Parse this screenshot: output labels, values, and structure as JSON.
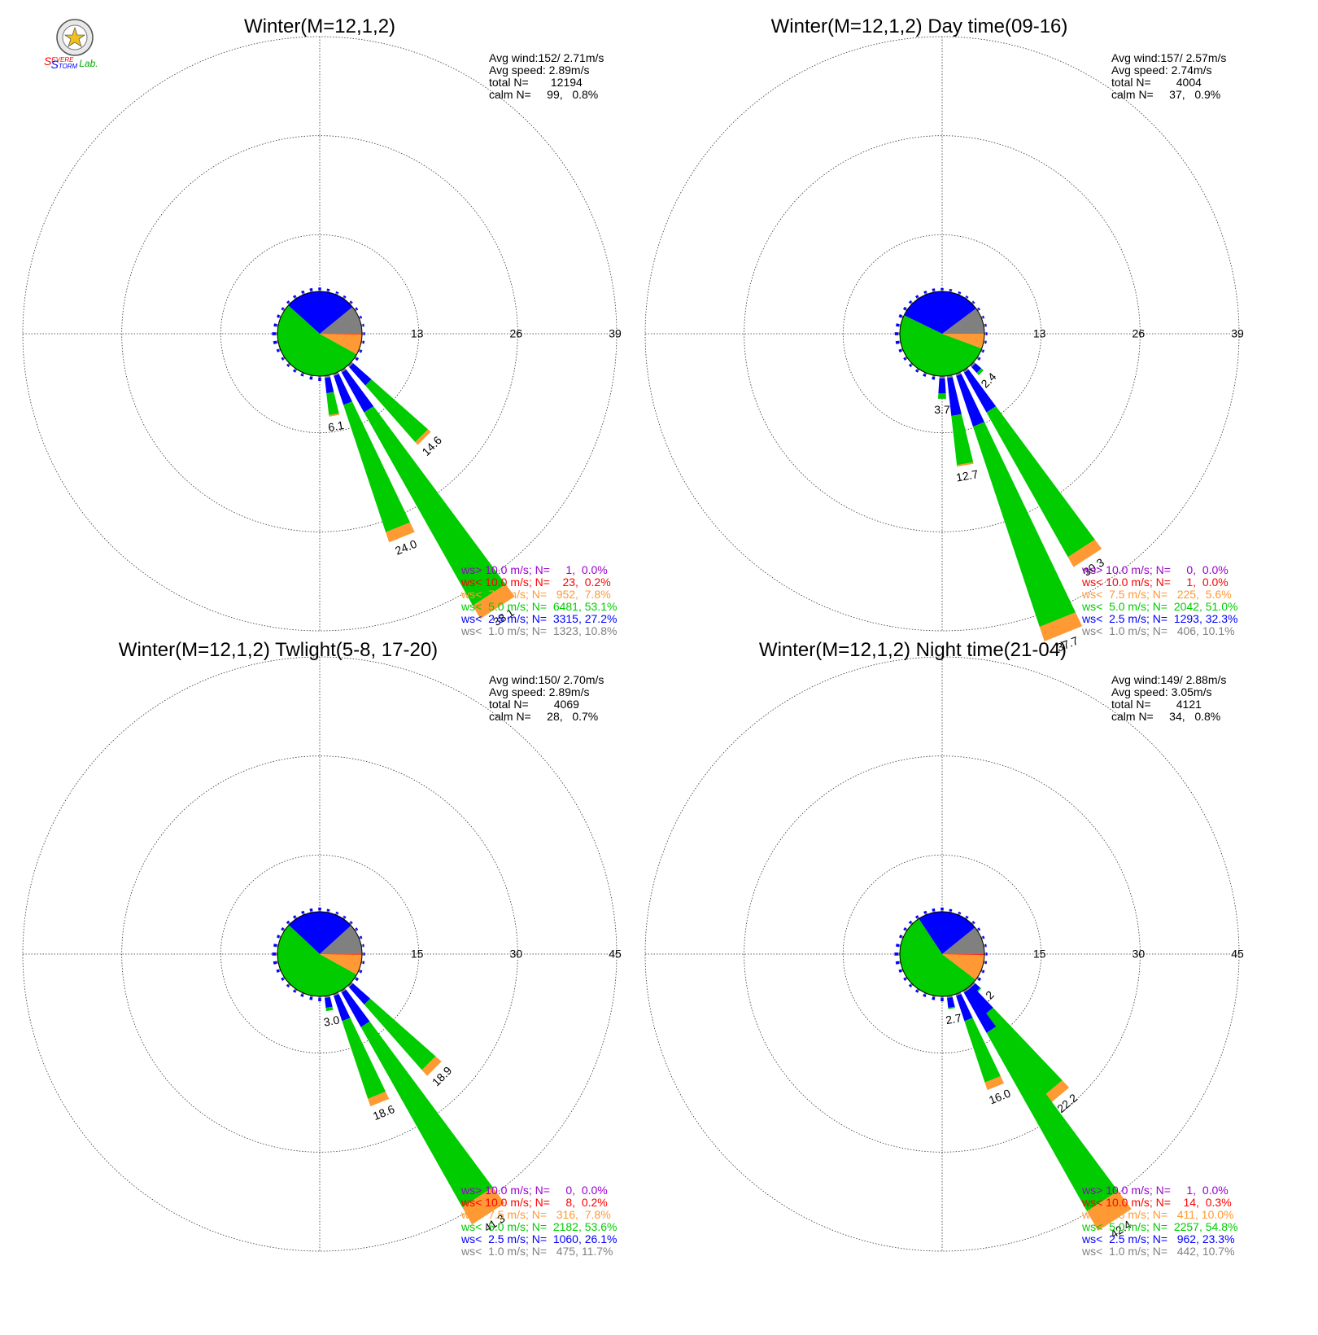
{
  "colors": {
    "ws_gt_10": "#9900cc",
    "ws_lt_10": "#ff0000",
    "ws_lt_7_5": "#ff9933",
    "ws_lt_5": "#00cc00",
    "ws_lt_2_5": "#0000ff",
    "ws_lt_1": "#808080",
    "grid": "#999999"
  },
  "logo": {
    "icon": "severe-storm-lab-logo",
    "text_parts": [
      "S",
      "EVERE",
      "S",
      "TORM",
      "Lab."
    ]
  },
  "chart_data": [
    {
      "type": "windrose",
      "title": "Winter(M=12,1,2)",
      "ring_labels": [
        "13",
        "26",
        "39"
      ],
      "rmax": 39,
      "stats": [
        "Avg wind:152/ 2.71m/s",
        "Avg speed: 2.89m/s",
        "total N=       12194",
        "calm N=     99,   0.8%"
      ],
      "legend": [
        {
          "key": "ws_gt_10",
          "text": "ws> 10.0 m/s; N=     1,  0.0%"
        },
        {
          "key": "ws_lt_10",
          "text": "ws< 10.0 m/s; N=    23,  0.2%"
        },
        {
          "key": "ws_lt_7_5",
          "text": "ws<  7.5 m/s; N=   952,  7.8%"
        },
        {
          "key": "ws_lt_5",
          "text": "ws<  5.0 m/s; N=  6481, 53.1%"
        },
        {
          "key": "ws_lt_2_5",
          "text": "ws<  2.5 m/s; N=  3315, 27.2%"
        },
        {
          "key": "ws_lt_1",
          "text": "ws<  1.0 m/s; N=  1323, 10.8%"
        }
      ],
      "pie": [
        10.8,
        27.2,
        53.1,
        7.8,
        0.2,
        0.0
      ],
      "petals": [
        {
          "dir": 135,
          "label": "14.6",
          "segments": [
            1.0,
            3.2,
            9.9,
            0.5
          ]
        },
        {
          "dir": 147,
          "label": "38.1",
          "segments": [
            1.0,
            6.0,
            29.1,
            2.0
          ]
        },
        {
          "dir": 158,
          "label": "24.0",
          "segments": [
            1.0,
            4.0,
            17.6,
            1.4
          ]
        },
        {
          "dir": 170,
          "label": "6.1",
          "segments": [
            1.0,
            2.0,
            2.9,
            0.2
          ]
        }
      ],
      "small_petals": [
        {
          "dir": 180,
          "v": 2.0
        },
        {
          "dir": 191,
          "v": 1.8
        },
        {
          "dir": 203,
          "v": 1.5
        },
        {
          "dir": 214,
          "v": 1.5
        },
        {
          "dir": 225,
          "v": 1.4
        },
        {
          "dir": 236,
          "v": 1.4
        },
        {
          "dir": 248,
          "v": 1.6
        },
        {
          "dir": 259,
          "v": 2.0
        },
        {
          "dir": 270,
          "v": 2.2
        },
        {
          "dir": 281,
          "v": 1.8
        },
        {
          "dir": 293,
          "v": 1.6
        },
        {
          "dir": 304,
          "v": 1.4
        },
        {
          "dir": 315,
          "v": 1.4
        },
        {
          "dir": 326,
          "v": 1.5
        },
        {
          "dir": 338,
          "v": 1.6
        },
        {
          "dir": 349,
          "v": 1.6
        },
        {
          "dir": 0,
          "v": 1.6
        },
        {
          "dir": 11,
          "v": 1.4
        },
        {
          "dir": 23,
          "v": 1.3
        },
        {
          "dir": 34,
          "v": 1.3
        },
        {
          "dir": 45,
          "v": 1.3
        },
        {
          "dir": 56,
          "v": 1.3
        },
        {
          "dir": 68,
          "v": 1.2
        },
        {
          "dir": 79,
          "v": 1.2
        },
        {
          "dir": 90,
          "v": 1.2
        },
        {
          "dir": 101,
          "v": 1.3
        },
        {
          "dir": 113,
          "v": 1.4
        },
        {
          "dir": 124,
          "v": 1.6
        }
      ]
    },
    {
      "type": "windrose",
      "title": "Winter(M=12,1,2) Day time(09-16)",
      "ring_labels": [
        "13",
        "26",
        "39"
      ],
      "rmax": 39,
      "stats": [
        "Avg wind:157/ 2.57m/s",
        "Avg speed: 2.74m/s",
        "total N=        4004",
        "calm N=     37,   0.9%"
      ],
      "legend": [
        {
          "key": "ws_gt_10",
          "text": "ws> 10.0 m/s; N=     0,  0.0%"
        },
        {
          "key": "ws_lt_10",
          "text": "ws< 10.0 m/s; N=     1,  0.0%"
        },
        {
          "key": "ws_lt_7_5",
          "text": "ws<  7.5 m/s; N=   225,  5.6%"
        },
        {
          "key": "ws_lt_5",
          "text": "ws<  5.0 m/s; N=  2042, 51.0%"
        },
        {
          "key": "ws_lt_2_5",
          "text": "ws<  2.5 m/s; N=  1293, 32.3%"
        },
        {
          "key": "ws_lt_1",
          "text": "ws<  1.0 m/s; N=   406, 10.1%"
        }
      ],
      "pie": [
        10.1,
        32.3,
        51.0,
        5.6,
        0.0,
        0.0
      ],
      "petals": [
        {
          "dir": 135,
          "label": "2.4",
          "segments": [
            1.0,
            1.0,
            0.4,
            0.0
          ]
        },
        {
          "dir": 147,
          "label": "30.3",
          "segments": [
            1.0,
            6.0,
            21.8,
            1.5
          ]
        },
        {
          "dir": 158,
          "label": "37.7",
          "segments": [
            1.0,
            7.0,
            27.7,
            2.0
          ]
        },
        {
          "dir": 170,
          "label": "12.7",
          "segments": [
            1.0,
            5.0,
            6.5,
            0.2
          ]
        },
        {
          "dir": 180,
          "label": "3.7",
          "segments": [
            1.0,
            2.0,
            0.7,
            0.0
          ]
        }
      ],
      "small_petals": [
        {
          "dir": 191,
          "v": 1.8
        },
        {
          "dir": 203,
          "v": 1.6
        },
        {
          "dir": 214,
          "v": 1.5
        },
        {
          "dir": 225,
          "v": 1.5
        },
        {
          "dir": 236,
          "v": 1.5
        },
        {
          "dir": 248,
          "v": 1.7
        },
        {
          "dir": 259,
          "v": 2.0
        },
        {
          "dir": 270,
          "v": 2.1
        },
        {
          "dir": 281,
          "v": 1.9
        },
        {
          "dir": 293,
          "v": 1.8
        },
        {
          "dir": 304,
          "v": 1.6
        },
        {
          "dir": 315,
          "v": 1.5
        },
        {
          "dir": 326,
          "v": 1.5
        },
        {
          "dir": 338,
          "v": 1.5
        },
        {
          "dir": 349,
          "v": 1.5
        },
        {
          "dir": 0,
          "v": 1.4
        },
        {
          "dir": 11,
          "v": 1.3
        },
        {
          "dir": 23,
          "v": 1.3
        },
        {
          "dir": 34,
          "v": 1.2
        },
        {
          "dir": 45,
          "v": 1.2
        },
        {
          "dir": 56,
          "v": 1.2
        },
        {
          "dir": 68,
          "v": 1.2
        },
        {
          "dir": 79,
          "v": 1.2
        },
        {
          "dir": 90,
          "v": 1.2
        },
        {
          "dir": 101,
          "v": 1.2
        },
        {
          "dir": 113,
          "v": 1.3
        },
        {
          "dir": 124,
          "v": 1.4
        }
      ]
    },
    {
      "type": "windrose",
      "title": "Winter(M=12,1,2) Twlight(5-8, 17-20)",
      "ring_labels": [
        "15",
        "30",
        "45"
      ],
      "rmax": 45,
      "stats": [
        "Avg wind:150/ 2.70m/s",
        "Avg speed: 2.89m/s",
        "total N=        4069",
        "calm N=     28,   0.7%"
      ],
      "legend": [
        {
          "key": "ws_gt_10",
          "text": "ws> 10.0 m/s; N=     0,  0.0%"
        },
        {
          "key": "ws_lt_10",
          "text": "ws< 10.0 m/s; N=     8,  0.2%"
        },
        {
          "key": "ws_lt_7_5",
          "text": "ws<  7.5 m/s; N=   316,  7.8%"
        },
        {
          "key": "ws_lt_5",
          "text": "ws<  5.0 m/s; N=  2182, 53.6%"
        },
        {
          "key": "ws_lt_2_5",
          "text": "ws<  2.5 m/s; N=  1060, 26.1%"
        },
        {
          "key": "ws_lt_1",
          "text": "ws<  1.0 m/s; N=   475, 11.7%"
        }
      ],
      "pie": [
        11.7,
        26.1,
        53.6,
        7.8,
        0.2,
        0.0
      ],
      "petals": [
        {
          "dir": 135,
          "label": "18.9",
          "segments": [
            1.0,
            3.5,
            13.2,
            1.2
          ]
        },
        {
          "dir": 147,
          "label": "41.3",
          "segments": [
            1.0,
            6.0,
            31.3,
            3.0
          ]
        },
        {
          "dir": 158,
          "label": "18.6",
          "segments": [
            1.0,
            4.0,
            12.4,
            1.2
          ]
        },
        {
          "dir": 170,
          "label": "3.0",
          "segments": [
            1.0,
            1.5,
            0.5,
            0.0
          ]
        }
      ],
      "small_petals": [
        {
          "dir": 180,
          "v": 2.0
        },
        {
          "dir": 191,
          "v": 1.8
        },
        {
          "dir": 203,
          "v": 1.6
        },
        {
          "dir": 214,
          "v": 1.5
        },
        {
          "dir": 225,
          "v": 1.5
        },
        {
          "dir": 236,
          "v": 1.5
        },
        {
          "dir": 248,
          "v": 1.7
        },
        {
          "dir": 259,
          "v": 2.0
        },
        {
          "dir": 270,
          "v": 2.2
        },
        {
          "dir": 281,
          "v": 1.9
        },
        {
          "dir": 293,
          "v": 1.6
        },
        {
          "dir": 304,
          "v": 1.5
        },
        {
          "dir": 315,
          "v": 1.5
        },
        {
          "dir": 326,
          "v": 1.5
        },
        {
          "dir": 338,
          "v": 1.6
        },
        {
          "dir": 349,
          "v": 1.6
        },
        {
          "dir": 0,
          "v": 1.7
        },
        {
          "dir": 11,
          "v": 1.4
        },
        {
          "dir": 23,
          "v": 1.3
        },
        {
          "dir": 34,
          "v": 1.3
        },
        {
          "dir": 45,
          "v": 1.3
        },
        {
          "dir": 56,
          "v": 1.3
        },
        {
          "dir": 68,
          "v": 1.3
        },
        {
          "dir": 79,
          "v": 1.2
        },
        {
          "dir": 90,
          "v": 1.2
        },
        {
          "dir": 101,
          "v": 1.3
        },
        {
          "dir": 113,
          "v": 1.4
        },
        {
          "dir": 124,
          "v": 1.6
        }
      ]
    },
    {
      "type": "windrose",
      "title": "Winter(M=12,1,2) Night time(21-04)",
      "ring_labels": [
        "15",
        "30",
        "45"
      ],
      "rmax": 45,
      "stats": [
        "Avg wind:149/ 2.88m/s",
        "Avg speed: 3.05m/s",
        "total N=        4121",
        "calm N=     34,   0.8%"
      ],
      "legend": [
        {
          "key": "ws_gt_10",
          "text": "ws> 10.0 m/s; N=     1,  0.0%"
        },
        {
          "key": "ws_lt_10",
          "text": "ws< 10.0 m/s; N=    14,  0.3%"
        },
        {
          "key": "ws_lt_7_5",
          "text": "ws<  7.5 m/s; N=   411, 10.0%"
        },
        {
          "key": "ws_lt_5",
          "text": "ws<  5.0 m/s; N=  2257, 54.8%"
        },
        {
          "key": "ws_lt_2_5",
          "text": "ws<  2.5 m/s; N=   962, 23.3%"
        },
        {
          "key": "ws_lt_1",
          "text": "ws<  1.0 m/s; N=   442, 10.7%"
        }
      ],
      "pie": [
        10.7,
        23.3,
        54.8,
        10.0,
        0.3,
        0.0
      ],
      "petals": [
        {
          "dir": 135,
          "label": "2.2",
          "segments": [
            1.0,
            1.0,
            0.2,
            0.0
          ]
        },
        {
          "dir": 140,
          "label": "22.2",
          "segments": [
            1.0,
            4.5,
            15.2,
            1.5
          ]
        },
        {
          "dir": 147,
          "label": "42.4",
          "segments": [
            1.0,
            7.0,
            31.0,
            3.4
          ]
        },
        {
          "dir": 158,
          "label": "16.0",
          "segments": [
            1.0,
            4.0,
            9.8,
            1.2
          ]
        },
        {
          "dir": 170,
          "label": "2.7",
          "segments": [
            1.0,
            1.5,
            0.2,
            0.0
          ]
        }
      ],
      "small_petals": [
        {
          "dir": 180,
          "v": 2.0
        },
        {
          "dir": 191,
          "v": 1.8
        },
        {
          "dir": 203,
          "v": 1.6
        },
        {
          "dir": 214,
          "v": 1.5
        },
        {
          "dir": 225,
          "v": 1.5
        },
        {
          "dir": 236,
          "v": 1.5
        },
        {
          "dir": 248,
          "v": 1.7
        },
        {
          "dir": 259,
          "v": 2.0
        },
        {
          "dir": 270,
          "v": 2.2
        },
        {
          "dir": 281,
          "v": 1.9
        },
        {
          "dir": 293,
          "v": 1.6
        },
        {
          "dir": 304,
          "v": 1.5
        },
        {
          "dir": 315,
          "v": 1.5
        },
        {
          "dir": 326,
          "v": 1.5
        },
        {
          "dir": 338,
          "v": 1.6
        },
        {
          "dir": 349,
          "v": 1.6
        },
        {
          "dir": 0,
          "v": 1.7
        },
        {
          "dir": 11,
          "v": 1.4
        },
        {
          "dir": 23,
          "v": 1.3
        },
        {
          "dir": 34,
          "v": 1.3
        },
        {
          "dir": 45,
          "v": 1.3
        },
        {
          "dir": 56,
          "v": 1.3
        },
        {
          "dir": 68,
          "v": 1.3
        },
        {
          "dir": 79,
          "v": 1.2
        },
        {
          "dir": 90,
          "v": 1.2
        },
        {
          "dir": 101,
          "v": 1.3
        },
        {
          "dir": 113,
          "v": 1.4
        },
        {
          "dir": 124,
          "v": 1.6
        }
      ]
    }
  ]
}
